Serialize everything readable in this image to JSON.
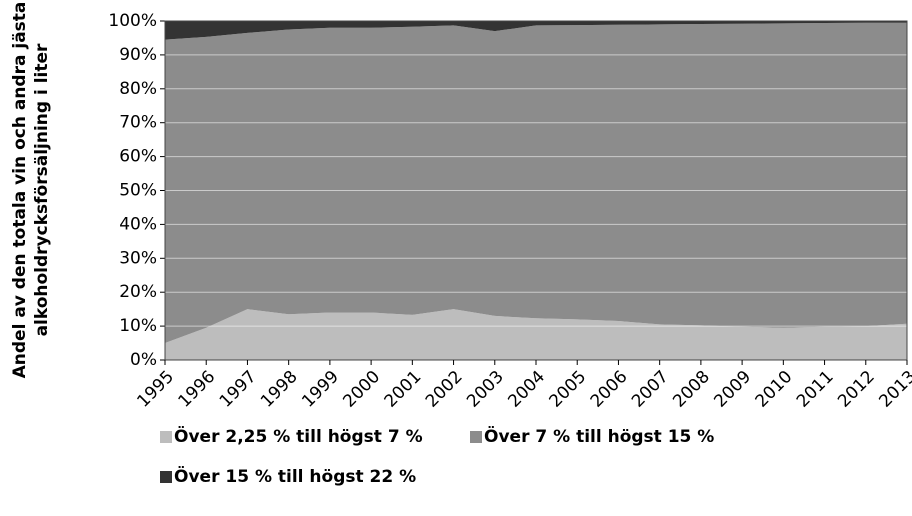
{
  "chart_data": {
    "type": "stacked_area",
    "ylabel": [
      "Andel av den totala vin och andra jästa",
      "alkoholdrycksförsäljning i liter"
    ],
    "categories": [
      "1995",
      "1996",
      "1997",
      "1998",
      "1999",
      "2000",
      "2001",
      "2002",
      "2003",
      "2004",
      "2005",
      "2006",
      "2007",
      "2008",
      "2009",
      "2010",
      "2011",
      "2012",
      "2013"
    ],
    "series": [
      {
        "name": "Över 2,25 % till högst 7 %",
        "color": "#bdbdbd",
        "values": [
          5,
          9.5,
          15,
          13.5,
          14,
          14,
          13.3,
          15,
          13,
          12.3,
          12,
          11.5,
          10.5,
          10.2,
          9.8,
          9.5,
          9.8,
          10,
          10.7
        ]
      },
      {
        "name": "Över 7 % till högst 15 %",
        "color": "#8c8c8c",
        "values": [
          89.5,
          85.8,
          81.5,
          84,
          84,
          84,
          85,
          83.7,
          84,
          86.4,
          86.8,
          87.4,
          88.5,
          88.9,
          89.4,
          89.8,
          89.6,
          89.5,
          88.8
        ]
      },
      {
        "name": "Över 15 % till högst 22 %",
        "color": "#333333",
        "values": [
          5.5,
          4.7,
          3.5,
          2.5,
          2,
          2,
          1.7,
          1.3,
          3,
          1.3,
          1.2,
          1.1,
          1,
          0.9,
          0.8,
          0.7,
          0.6,
          0.5,
          0.5
        ]
      }
    ],
    "ylim": [
      0,
      100
    ],
    "yticks": [
      {
        "value": 0,
        "label": "0%"
      },
      {
        "value": 10,
        "label": "10%"
      },
      {
        "value": 20,
        "label": "20%"
      },
      {
        "value": 30,
        "label": "30%"
      },
      {
        "value": 40,
        "label": "40%"
      },
      {
        "value": 50,
        "label": "50%"
      },
      {
        "value": 60,
        "label": "60%"
      },
      {
        "value": 70,
        "label": "70%"
      },
      {
        "value": 80,
        "label": "80%"
      },
      {
        "value": 90,
        "label": "90%"
      },
      {
        "value": 100,
        "label": "100%"
      }
    ],
    "grid": true
  }
}
